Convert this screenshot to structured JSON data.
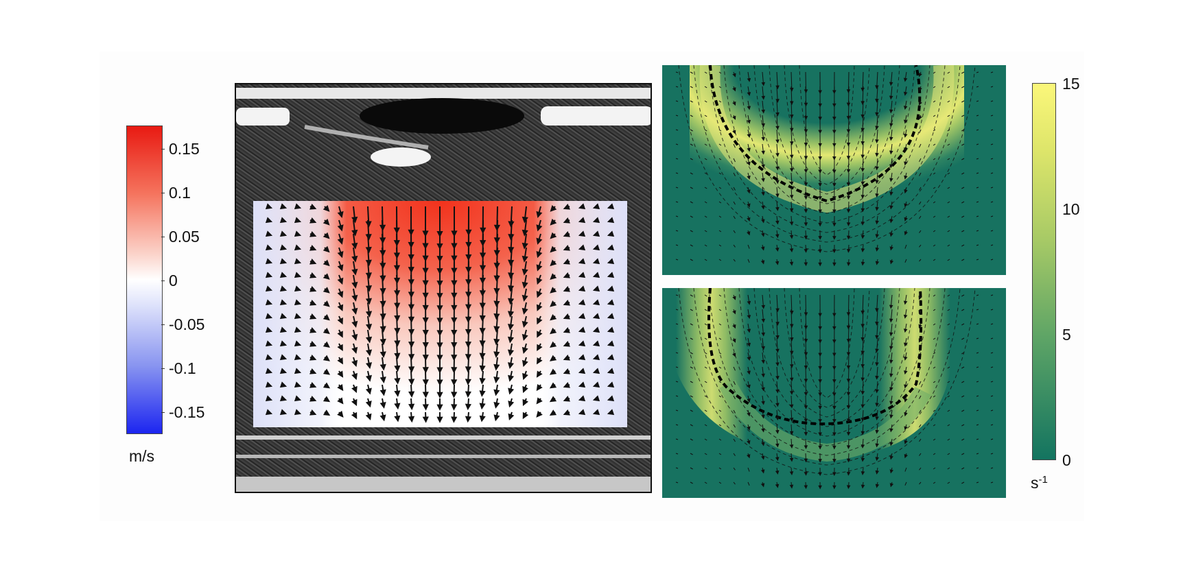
{
  "velocity_colorbar": {
    "ticks": [
      "0.15",
      "0.1",
      "0.05",
      "0",
      "-0.05",
      "-0.1",
      "-0.15"
    ],
    "unit": "m/s",
    "colors": {
      "positive": "#e81a12",
      "zero": "#ffffff",
      "negative": "#1c25f0"
    }
  },
  "shear_colorbar": {
    "ticks": [
      "15",
      "10",
      "5",
      "0"
    ],
    "unit_base": "s",
    "unit_exp": "-1",
    "colors": {
      "high": "#fbf77a",
      "mid": "#a6c966",
      "low": "#137460"
    }
  },
  "panels": {
    "ultrasound": {
      "content": "ultrasound B-mode image with velocity vector field overlay"
    },
    "shear_top": {
      "content": "shear rate map with vector field and dashed contours"
    },
    "shear_bottom": {
      "content": "shear rate map with vector field and dashed contours"
    }
  }
}
